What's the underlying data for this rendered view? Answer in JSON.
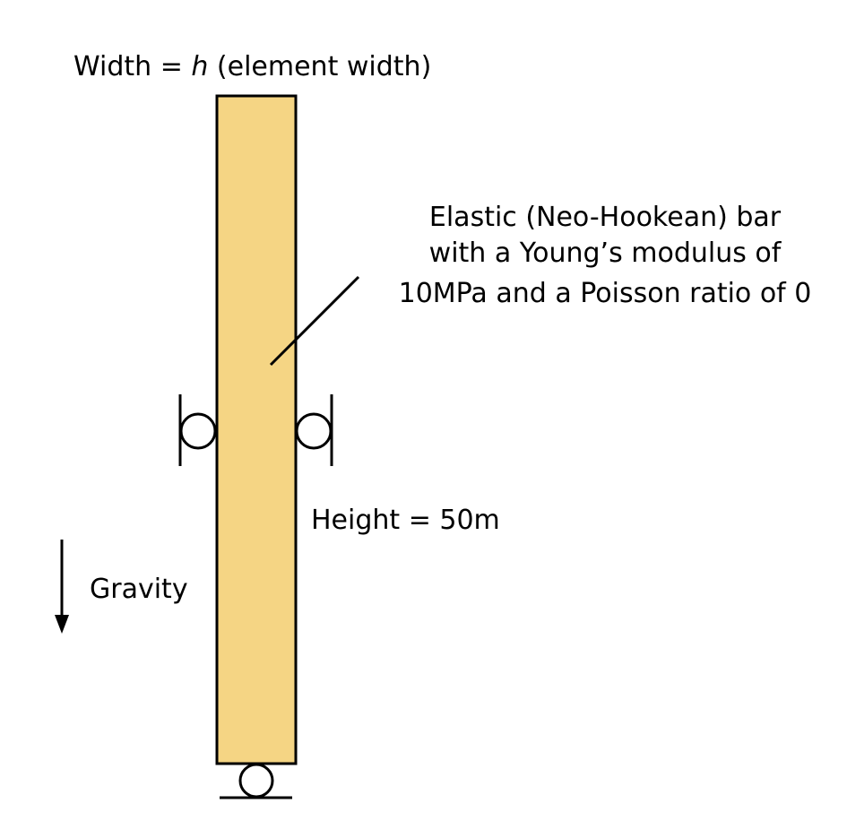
{
  "labels": {
    "width_prefix": "Width = ",
    "width_var": "h",
    "width_suffix": " (element width)",
    "description_line1": "Elastic (Neo-Hookean) bar",
    "description_line2": "with a Young’s modulus of",
    "description_line3": "10MPa and a Poisson ratio of 0",
    "height": "Height = 50m",
    "gravity": "Gravity"
  },
  "colors": {
    "bar_fill": "#F5D584",
    "stroke": "#000000"
  }
}
